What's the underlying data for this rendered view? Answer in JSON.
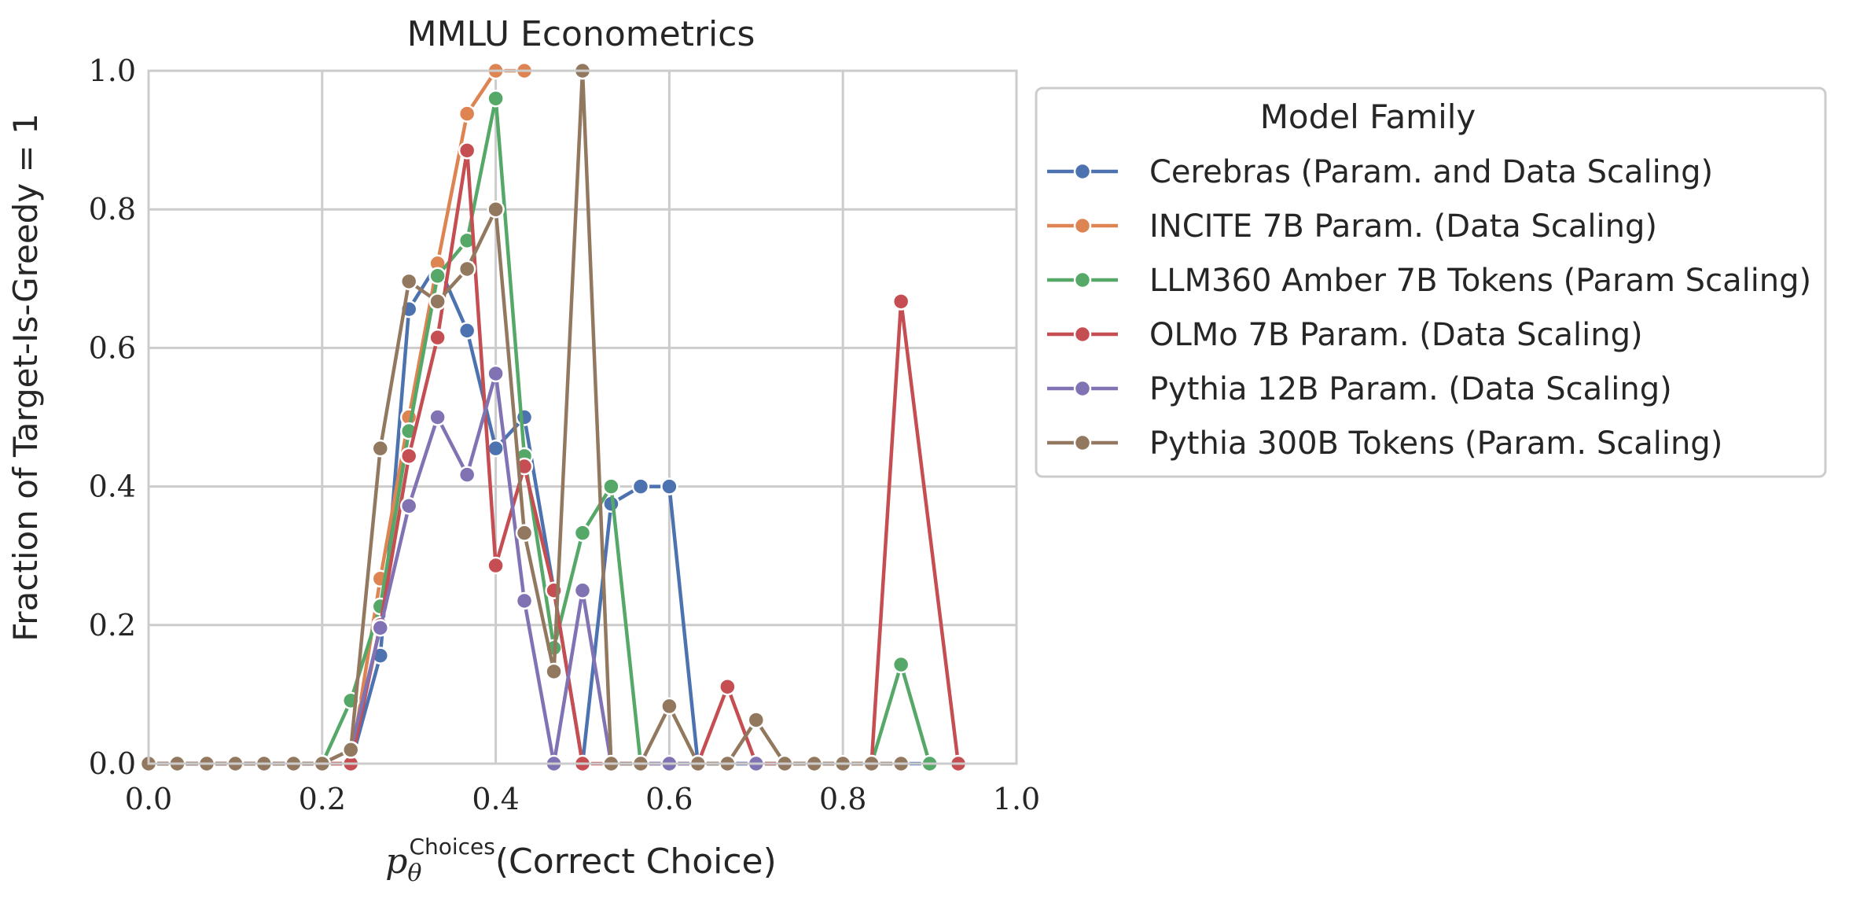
{
  "chart_data": {
    "type": "line",
    "title": "MMLU Econometrics",
    "xlabel_base": "p",
    "xlabel_sub": "θ",
    "xlabel_sup": "Choices",
    "xlabel_rest": "(Correct Choice)",
    "ylabel": "Fraction of Target-Is-Greedy = 1",
    "xlim": [
      0.0,
      1.0
    ],
    "ylim": [
      0.0,
      1.0
    ],
    "xticks": [
      "0.0",
      "0.2",
      "0.4",
      "0.6",
      "0.8",
      "1.0"
    ],
    "yticks": [
      "0.0",
      "0.2",
      "0.4",
      "0.6",
      "0.8",
      "1.0"
    ],
    "grid": true,
    "legend": {
      "title": "Model Family",
      "placement": "outside upper-right"
    },
    "series": [
      {
        "name": "Cerebras (Param. and Data Scaling)",
        "color": "#4c72b0",
        "points": [
          [
            0.0,
            0.0
          ],
          [
            0.033,
            0.0
          ],
          [
            0.067,
            0.0
          ],
          [
            0.1,
            0.0
          ],
          [
            0.133,
            0.0
          ],
          [
            0.167,
            0.0
          ],
          [
            0.2,
            0.0
          ],
          [
            0.233,
            0.0
          ],
          [
            0.267,
            0.156
          ],
          [
            0.3,
            0.656
          ],
          [
            0.333,
            0.722
          ],
          [
            0.367,
            0.625
          ],
          [
            0.4,
            0.455
          ],
          [
            0.433,
            0.5
          ],
          [
            0.467,
            0.25
          ],
          [
            0.5,
            0.0
          ],
          [
            0.533,
            0.375
          ],
          [
            0.567,
            0.4
          ],
          [
            0.6,
            0.4
          ],
          [
            0.633,
            0.0
          ],
          [
            0.9,
            0.0
          ]
        ]
      },
      {
        "name": "INCITE 7B Param. (Data Scaling)",
        "color": "#dd8452",
        "points": [
          [
            0.0,
            0.0
          ],
          [
            0.2,
            0.0
          ],
          [
            0.233,
            0.0
          ],
          [
            0.267,
            0.267
          ],
          [
            0.3,
            0.5
          ],
          [
            0.333,
            0.722
          ],
          [
            0.367,
            0.938
          ],
          [
            0.4,
            1.0
          ],
          [
            0.433,
            1.0
          ]
        ]
      },
      {
        "name": "LLM360 Amber 7B Tokens (Param Scaling)",
        "color": "#55a868",
        "points": [
          [
            0.0,
            0.0
          ],
          [
            0.2,
            0.0
          ],
          [
            0.233,
            0.091
          ],
          [
            0.267,
            0.227
          ],
          [
            0.3,
            0.48
          ],
          [
            0.333,
            0.704
          ],
          [
            0.367,
            0.755
          ],
          [
            0.4,
            0.96
          ],
          [
            0.433,
            0.444
          ],
          [
            0.467,
            0.167
          ],
          [
            0.5,
            0.333
          ],
          [
            0.533,
            0.4
          ],
          [
            0.567,
            0.0
          ],
          [
            0.833,
            0.0
          ],
          [
            0.867,
            0.143
          ],
          [
            0.9,
            0.0
          ]
        ]
      },
      {
        "name": "OLMo 7B Param. (Data Scaling)",
        "color": "#c44e52",
        "points": [
          [
            0.0,
            0.0
          ],
          [
            0.2,
            0.0
          ],
          [
            0.233,
            0.0
          ],
          [
            0.267,
            0.2
          ],
          [
            0.3,
            0.444
          ],
          [
            0.333,
            0.615
          ],
          [
            0.367,
            0.885
          ],
          [
            0.4,
            0.286
          ],
          [
            0.433,
            0.429
          ],
          [
            0.467,
            0.25
          ],
          [
            0.5,
            0.0
          ],
          [
            0.633,
            0.0
          ],
          [
            0.667,
            0.111
          ],
          [
            0.7,
            0.0
          ],
          [
            0.833,
            0.0
          ],
          [
            0.867,
            0.667
          ],
          [
            0.933,
            0.0
          ]
        ]
      },
      {
        "name": "Pythia 12B Param. (Data Scaling)",
        "color": "#8172b3",
        "points": [
          [
            0.0,
            0.0
          ],
          [
            0.2,
            0.0
          ],
          [
            0.233,
            0.02
          ],
          [
            0.267,
            0.196
          ],
          [
            0.3,
            0.372
          ],
          [
            0.333,
            0.5
          ],
          [
            0.367,
            0.417
          ],
          [
            0.4,
            0.563
          ],
          [
            0.433,
            0.235
          ],
          [
            0.467,
            0.0
          ],
          [
            0.5,
            0.25
          ],
          [
            0.533,
            0.0
          ],
          [
            0.6,
            0.0
          ],
          [
            0.7,
            0.0
          ]
        ]
      },
      {
        "name": "Pythia 300B Tokens (Param. Scaling)",
        "color": "#937860",
        "points": [
          [
            0.0,
            0.0
          ],
          [
            0.033,
            0.0
          ],
          [
            0.067,
            0.0
          ],
          [
            0.1,
            0.0
          ],
          [
            0.133,
            0.0
          ],
          [
            0.167,
            0.0
          ],
          [
            0.2,
            0.0
          ],
          [
            0.233,
            0.02
          ],
          [
            0.267,
            0.455
          ],
          [
            0.3,
            0.696
          ],
          [
            0.333,
            0.667
          ],
          [
            0.367,
            0.714
          ],
          [
            0.4,
            0.8
          ],
          [
            0.433,
            0.333
          ],
          [
            0.467,
            0.133
          ],
          [
            0.5,
            1.0
          ],
          [
            0.533,
            0.0
          ],
          [
            0.567,
            0.0
          ],
          [
            0.6,
            0.083
          ],
          [
            0.633,
            0.0
          ],
          [
            0.667,
            0.0
          ],
          [
            0.7,
            0.063
          ],
          [
            0.733,
            0.0
          ],
          [
            0.767,
            0.0
          ],
          [
            0.8,
            0.0
          ],
          [
            0.833,
            0.0
          ],
          [
            0.867,
            0.0
          ]
        ]
      }
    ]
  }
}
